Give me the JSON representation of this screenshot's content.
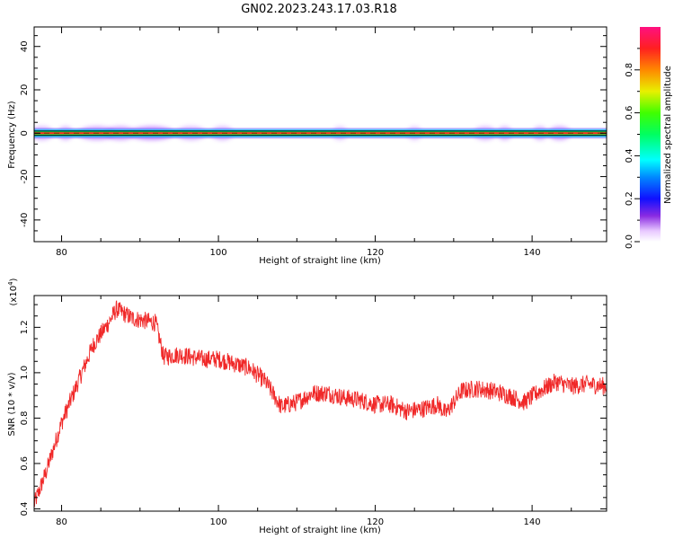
{
  "figure": {
    "title": "GN02.2023.243.17.03.R18"
  },
  "chart_data": [
    {
      "type": "heatmap",
      "xlabel": "Height of straight line (km)",
      "ylabel": "Frequency (Hz)",
      "xlim": [
        76.5,
        149.5
      ],
      "ylim": [
        -50,
        49
      ],
      "x_ticks": [
        80,
        100,
        120,
        140
      ],
      "y_ticks": [
        -40,
        -20,
        0,
        20,
        40
      ],
      "colorbar": {
        "label": "Normalized spectral amplitude",
        "range": [
          0.0,
          1.0
        ],
        "ticks": [
          0.0,
          0.2,
          0.4,
          0.6,
          0.8
        ]
      },
      "band": {
        "center_hz": 0,
        "core_halfwidth_hz": 1,
        "halo_halfwidth_hz": 2.5
      },
      "halo_blobs": [
        {
          "x": 77.5,
          "w": 1.5,
          "amp": 0.2
        },
        {
          "x": 80.5,
          "w": 1.0,
          "amp": 0.2
        },
        {
          "x": 84.5,
          "w": 2.5,
          "amp": 0.25
        },
        {
          "x": 87.5,
          "w": 2.0,
          "amp": 0.25
        },
        {
          "x": 91.5,
          "w": 3.0,
          "amp": 0.3
        },
        {
          "x": 96.5,
          "w": 2.0,
          "amp": 0.2
        },
        {
          "x": 100.5,
          "w": 1.5,
          "amp": 0.2
        },
        {
          "x": 115.5,
          "w": 1.0,
          "amp": 0.15
        },
        {
          "x": 125.0,
          "w": 1.0,
          "amp": 0.15
        },
        {
          "x": 134.0,
          "w": 1.5,
          "amp": 0.2
        },
        {
          "x": 136.5,
          "w": 1.0,
          "amp": 0.2
        },
        {
          "x": 141.0,
          "w": 1.0,
          "amp": 0.2
        },
        {
          "x": 143.5,
          "w": 1.5,
          "amp": 0.25
        }
      ]
    },
    {
      "type": "line",
      "xlabel": "Height of straight line (km)",
      "ylabel": "SNR (10 * v/v)",
      "y_multiplier_label": "(x10",
      "y_multiplier_exp": "4",
      "y_multiplier_close": ")",
      "xlim": [
        76.5,
        149.5
      ],
      "ylim": [
        0.39,
        1.34
      ],
      "x_ticks": [
        80,
        100,
        120,
        140
      ],
      "y_ticks": [
        0.4,
        0.6,
        0.8,
        1.0,
        1.2
      ],
      "y_tick_labels": [
        "0.4",
        "0.6",
        "0.8",
        "1.0",
        "1.2"
      ],
      "series": [
        {
          "color": "#f02828",
          "x": [
            76.5,
            78,
            80,
            82,
            84,
            86,
            87,
            89,
            92,
            93,
            95,
            98,
            100,
            102,
            104,
            106,
            108,
            110,
            112,
            114,
            116,
            118,
            120,
            122,
            124,
            126,
            128,
            129,
            131,
            133,
            135,
            137,
            139,
            141,
            143,
            145,
            147,
            149.5
          ],
          "y": [
            0.42,
            0.56,
            0.78,
            0.95,
            1.12,
            1.22,
            1.28,
            1.24,
            1.22,
            1.07,
            1.08,
            1.06,
            1.06,
            1.04,
            1.02,
            0.96,
            0.85,
            0.87,
            0.91,
            0.91,
            0.89,
            0.88,
            0.86,
            0.86,
            0.83,
            0.84,
            0.86,
            0.82,
            0.92,
            0.93,
            0.92,
            0.9,
            0.87,
            0.92,
            0.96,
            0.94,
            0.95,
            0.94
          ],
          "noise_amplitude": 0.04,
          "samples": 1500
        }
      ]
    }
  ]
}
